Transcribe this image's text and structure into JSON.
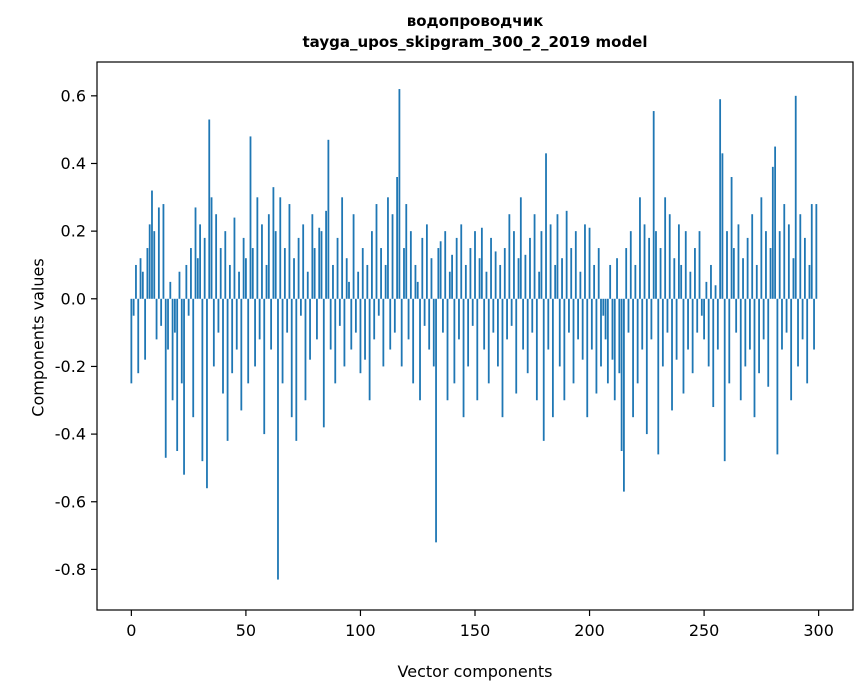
{
  "figure": {
    "title_line1": "водопроводчик",
    "title_line2": "tayga_upos_skipgram_300_2_2019 model",
    "xlabel": "Vector components",
    "ylabel": "Components values"
  },
  "chart_data": {
    "type": "bar",
    "title": "водопроводчик — tayga_upos_skipgram_300_2_2019 model",
    "xlabel": "Vector components",
    "ylabel": "Components values",
    "bar_color": "#1f77b4",
    "axis_color": "#000000",
    "xlim": [
      -15,
      315
    ],
    "ylim": [
      -0.92,
      0.7
    ],
    "x_ticks": [
      0,
      50,
      100,
      150,
      200,
      250,
      300
    ],
    "y_ticks": [
      -0.8,
      -0.6,
      -0.4,
      -0.2,
      0.0,
      0.2,
      0.4,
      0.6
    ],
    "y_tick_labels": [
      "-0.8",
      "-0.6",
      "-0.4",
      "-0.2",
      "0.0",
      "0.2",
      "0.4",
      "0.6"
    ],
    "grid": false,
    "legend": null,
    "n_components": 300,
    "values": [
      -0.25,
      -0.05,
      0.1,
      -0.22,
      0.12,
      0.08,
      -0.18,
      0.15,
      0.22,
      0.32,
      0.2,
      -0.12,
      0.27,
      -0.08,
      0.28,
      -0.47,
      -0.15,
      0.05,
      -0.3,
      -0.1,
      -0.45,
      0.08,
      -0.25,
      -0.52,
      0.1,
      -0.05,
      0.15,
      -0.35,
      0.27,
      0.12,
      0.22,
      -0.48,
      0.18,
      -0.56,
      0.53,
      0.3,
      -0.2,
      0.25,
      -0.1,
      0.15,
      -0.28,
      0.2,
      -0.42,
      0.1,
      -0.22,
      0.24,
      -0.15,
      0.08,
      -0.33,
      0.18,
      0.12,
      -0.25,
      0.48,
      0.15,
      -0.2,
      0.3,
      -0.12,
      0.22,
      -0.4,
      0.1,
      0.25,
      -0.15,
      0.33,
      0.2,
      -0.83,
      0.3,
      -0.25,
      0.15,
      -0.1,
      0.28,
      -0.35,
      0.12,
      -0.42,
      0.18,
      -0.05,
      0.22,
      -0.3,
      0.08,
      -0.18,
      0.25,
      0.15,
      -0.12,
      0.21,
      0.2,
      -0.38,
      0.26,
      0.47,
      -0.15,
      0.1,
      -0.25,
      0.18,
      -0.08,
      0.3,
      -0.2,
      0.12,
      0.05,
      -0.15,
      0.25,
      -0.1,
      0.08,
      -0.22,
      0.15,
      -0.18,
      0.1,
      -0.3,
      0.2,
      -0.12,
      0.28,
      -0.05,
      0.15,
      -0.2,
      0.1,
      0.3,
      -0.15,
      0.25,
      -0.1,
      0.36,
      0.62,
      -0.2,
      0.15,
      0.28,
      -0.12,
      0.2,
      -0.25,
      0.1,
      0.05,
      -0.3,
      0.18,
      -0.08,
      0.22,
      -0.15,
      0.12,
      -0.2,
      -0.72,
      0.15,
      0.17,
      -0.1,
      0.2,
      -0.3,
      0.08,
      0.13,
      -0.25,
      0.18,
      -0.12,
      0.22,
      -0.35,
      0.1,
      -0.2,
      0.15,
      -0.08,
      0.2,
      -0.3,
      0.12,
      0.21,
      -0.15,
      0.08,
      -0.25,
      0.18,
      -0.1,
      0.14,
      -0.2,
      0.1,
      -0.35,
      0.15,
      -0.12,
      0.25,
      -0.08,
      0.2,
      -0.28,
      0.12,
      0.3,
      -0.15,
      0.13,
      -0.22,
      0.18,
      -0.1,
      0.25,
      -0.3,
      0.08,
      0.2,
      -0.42,
      0.43,
      -0.15,
      0.22,
      -0.35,
      0.1,
      0.25,
      -0.2,
      0.12,
      -0.3,
      0.26,
      -0.1,
      0.15,
      -0.25,
      0.2,
      -0.12,
      0.08,
      -0.18,
      0.22,
      -0.35,
      0.21,
      -0.15,
      0.1,
      -0.28,
      0.15,
      -0.2,
      -0.05,
      -0.12,
      -0.25,
      0.1,
      -0.18,
      -0.3,
      0.12,
      -0.22,
      -0.45,
      -0.57,
      0.15,
      -0.1,
      0.2,
      -0.35,
      0.1,
      -0.25,
      0.3,
      -0.15,
      0.22,
      -0.4,
      0.18,
      -0.12,
      0.555,
      0.2,
      -0.46,
      0.15,
      -0.2,
      0.3,
      -0.1,
      0.25,
      -0.33,
      0.12,
      -0.18,
      0.22,
      0.1,
      -0.28,
      0.2,
      -0.15,
      0.08,
      -0.22,
      0.15,
      -0.1,
      0.2,
      -0.05,
      -0.12,
      0.05,
      -0.2,
      0.1,
      -0.32,
      0.04,
      -0.15,
      0.59,
      0.43,
      -0.48,
      0.2,
      -0.25,
      0.36,
      0.15,
      -0.1,
      0.22,
      -0.3,
      0.12,
      -0.2,
      0.18,
      -0.15,
      0.25,
      -0.35,
      0.1,
      -0.22,
      0.3,
      -0.12,
      0.2,
      -0.26,
      0.15,
      0.39,
      0.45,
      -0.46,
      0.2,
      -0.15,
      0.28,
      -0.1,
      0.22,
      -0.3,
      0.12,
      0.6,
      -0.2,
      0.25,
      -0.12,
      0.18,
      -0.25,
      0.1,
      0.28,
      -0.15,
      0.28
    ]
  }
}
